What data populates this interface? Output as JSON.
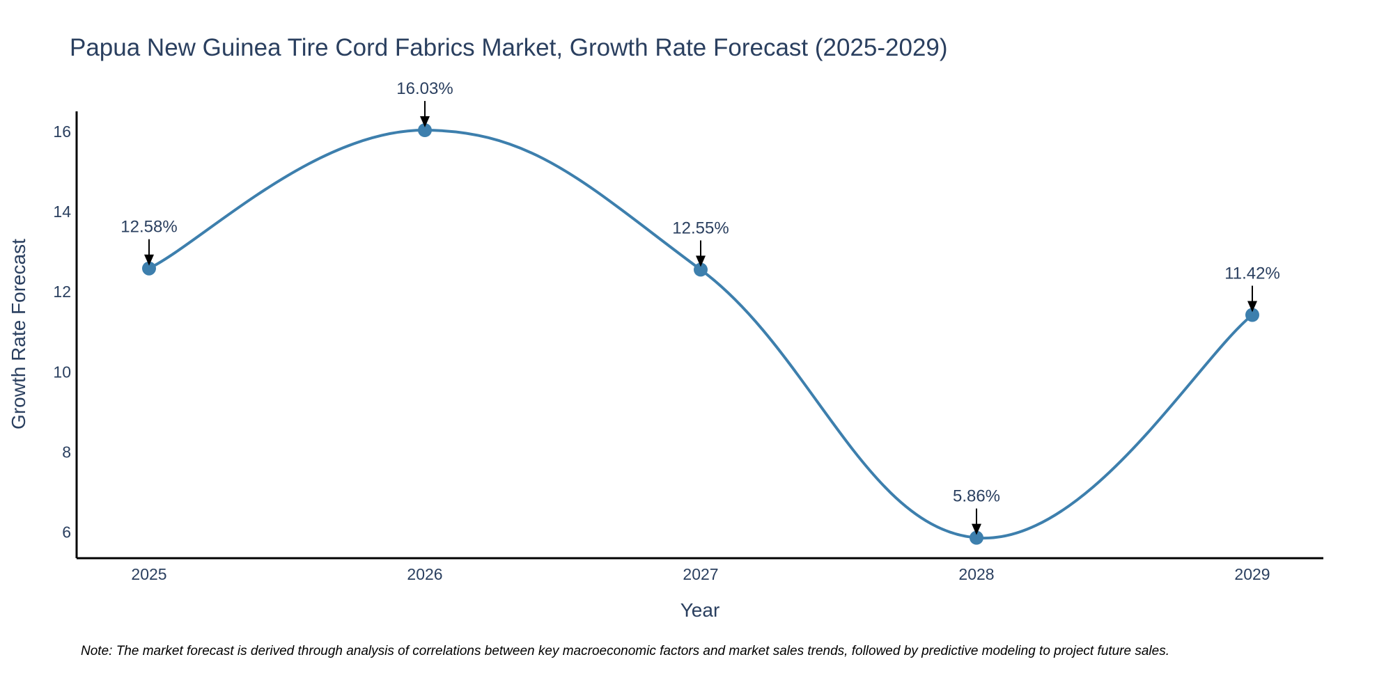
{
  "chart_data": {
    "type": "line",
    "title": "Papua New Guinea Tire Cord Fabrics Market, Growth Rate Forecast (2025-2029)",
    "xlabel": "Year",
    "ylabel": "Growth Rate Forecast",
    "categories": [
      "2025",
      "2026",
      "2027",
      "2028",
      "2029"
    ],
    "series": [
      {
        "name": "Growth Rate Forecast",
        "values": [
          12.58,
          16.03,
          12.55,
          5.86,
          11.42
        ],
        "labels": [
          "12.58%",
          "16.03%",
          "12.55%",
          "5.86%",
          "11.42%"
        ]
      }
    ],
    "yticks": [
      6,
      8,
      10,
      12,
      14,
      16
    ],
    "ylim": [
      5.35,
      16.5
    ],
    "grid": false,
    "legend": "none",
    "line_smoothing": "spline",
    "note": "Note: The market forecast is derived through analysis of correlations between key macroeconomic factors and market sales trends, followed by predictive modeling to project future sales."
  },
  "colors": {
    "line": "#3d7fad",
    "marker": "#3d7fad",
    "axis": "#000000",
    "text": "#2a3f5f",
    "arrow": "#000000"
  }
}
